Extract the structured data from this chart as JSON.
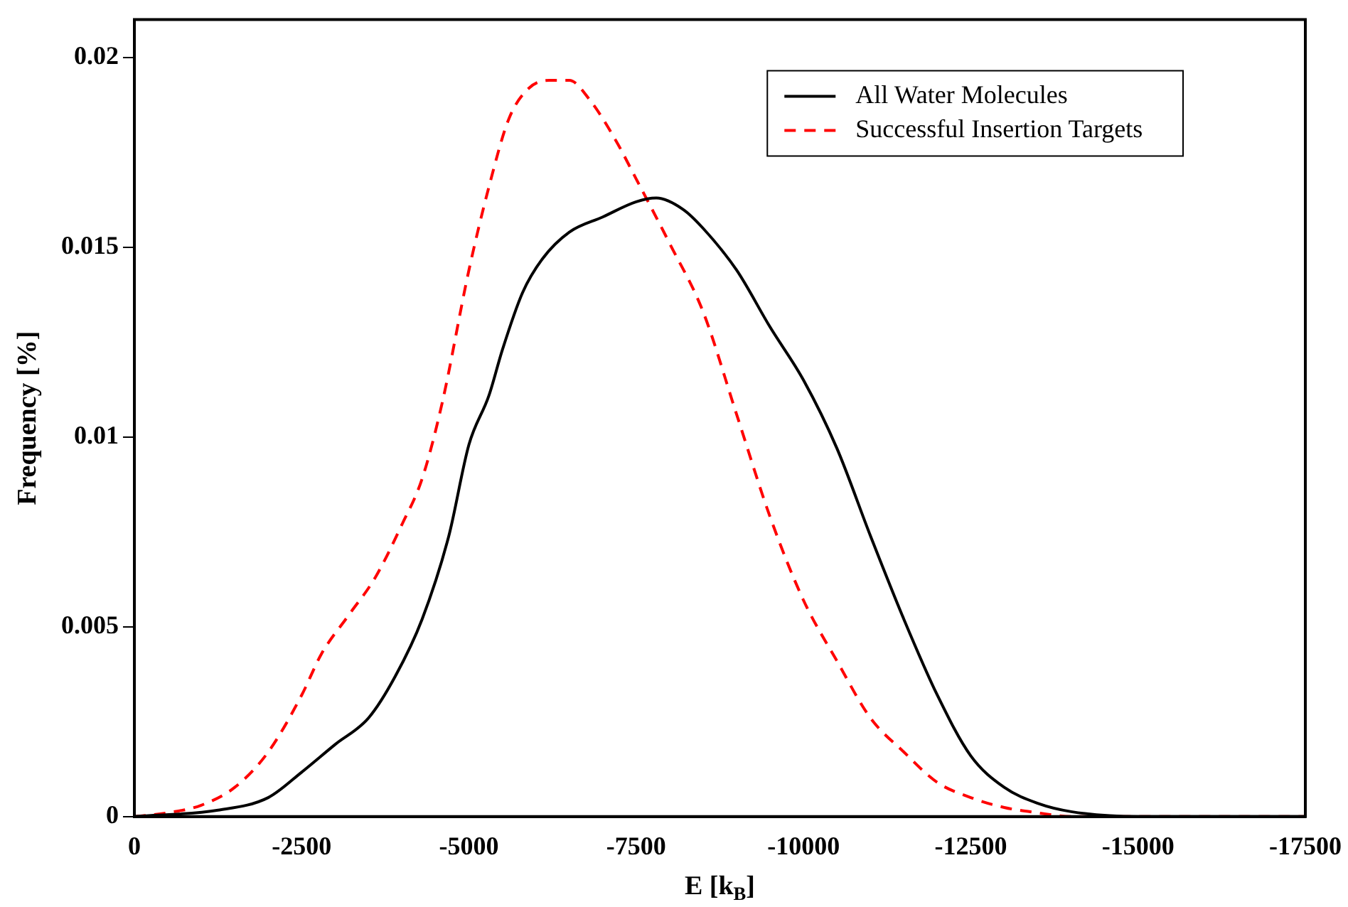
{
  "chart_data": {
    "type": "line",
    "xlabel": "E [k$_{B}$]",
    "ylabel": "Frequency [%]",
    "xlim": [
      0,
      -17500
    ],
    "xticks": [
      0,
      -2500,
      -5000,
      -7500,
      -10000,
      -12500,
      -15000,
      -17500
    ],
    "ylim": [
      0,
      0.021
    ],
    "yticks": [
      0,
      0.005,
      0.01,
      0.015,
      0.02
    ],
    "legend": "top right",
    "marker": "none",
    "grid": false,
    "series": [
      {
        "name": "All Water Molecules",
        "color": "#000000",
        "line_style": "solid",
        "x": [
          0,
          -1250,
          -2000,
          -2500,
          -3000,
          -3500,
          -3900,
          -4300,
          -4700,
          -5000,
          -5300,
          -5500,
          -5800,
          -6100,
          -6500,
          -7000,
          -7500,
          -7800,
          -8200,
          -8500,
          -9000,
          -9500,
          -10000,
          -10500,
          -11000,
          -11500,
          -12000,
          -12500,
          -13000,
          -13500,
          -14000,
          -15000,
          -17500
        ],
        "values": [
          0,
          0.00017,
          0.0005,
          0.00117,
          0.0019,
          0.0026,
          0.0037,
          0.0052,
          0.0074,
          0.0098,
          0.0111,
          0.0123,
          0.0138,
          0.0147,
          0.0154,
          0.0158,
          0.0162,
          0.0163,
          0.016,
          0.0155,
          0.0144,
          0.0129,
          0.0115,
          0.0097,
          0.0074,
          0.0052,
          0.0032,
          0.0016,
          0.00077,
          0.00035,
          0.00013,
          0,
          0
        ]
      },
      {
        "name": "Successful Insertion Targets",
        "color": "#ff0000",
        "line_style": "dashed",
        "x": [
          0,
          -500,
          -1000,
          -1500,
          -2000,
          -2500,
          -2800,
          -3200,
          -3600,
          -4000,
          -4300,
          -4600,
          -5000,
          -5300,
          -5600,
          -5900,
          -6200,
          -6500,
          -6800,
          -7200,
          -7500,
          -8000,
          -8500,
          -9000,
          -9500,
          -10000,
          -10500,
          -11000,
          -11500,
          -12000,
          -12500,
          -13000,
          -13500,
          -14000,
          -15000,
          -17500
        ],
        "values": [
          0,
          0.0001,
          0.0003,
          0.00077,
          0.0017,
          0.0032,
          0.0043,
          0.0053,
          0.0063,
          0.0077,
          0.0089,
          0.0109,
          0.0144,
          0.0166,
          0.0184,
          0.0192,
          0.0194,
          0.0194,
          0.0189,
          0.0178,
          0.0168,
          0.0151,
          0.0133,
          0.0106,
          0.0079,
          0.0057,
          0.0041,
          0.0026,
          0.0017,
          0.0009,
          0.0005,
          0.00024,
          0.0001,
          0,
          0,
          0
        ]
      }
    ]
  }
}
